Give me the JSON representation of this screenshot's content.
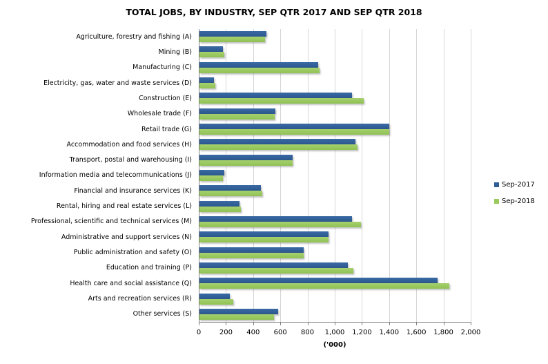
{
  "title": "TOTAL JOBS, BY INDUSTRY, SEP QTR 2017 AND SEP QTR 2018",
  "chart_data": {
    "type": "bar",
    "orientation": "horizontal",
    "title": "TOTAL JOBS, BY INDUSTRY, SEP QTR 2017 AND SEP QTR 2018",
    "xlabel": "('000)",
    "ylabel": "",
    "xlim": [
      0,
      2000
    ],
    "grid": true,
    "legend_position": "right",
    "x_tick_labels": [
      "0",
      "200",
      "400",
      "600",
      "800",
      "1,000",
      "1,200",
      "1,400",
      "1,600",
      "1,800",
      "2,000"
    ],
    "x_tick_values": [
      0,
      200,
      400,
      600,
      800,
      1000,
      1200,
      1400,
      1600,
      1800,
      2000
    ],
    "categories": [
      "Agriculture, forestry and fishing (A)",
      "Mining (B)",
      "Manufacturing (C)",
      "Electricity, gas, water and waste services (D)",
      "Construction (E)",
      "Wholesale trade (F)",
      "Retail trade (G)",
      "Accommodation and food services (H)",
      "Transport, postal and warehousing (I)",
      "Information media and telecommunications (J)",
      "Financial and insurance services (K)",
      "Rental, hiring and real estate services (L)",
      "Professional, scientific and technical services (M)",
      "Administrative and support services (N)",
      "Public administration and safety (O)",
      "Education and training (P)",
      "Health care and social assistance (Q)",
      "Arts and recreation services (R)",
      "Other services (S)"
    ],
    "series": [
      {
        "name": "Sep-2017",
        "color": "#2F5D94",
        "values": [
          490,
          175,
          875,
          105,
          1120,
          560,
          1395,
          1145,
          685,
          185,
          450,
          295,
          1120,
          950,
          765,
          1090,
          1750,
          225,
          580
        ]
      },
      {
        "name": "Sep-2018",
        "color": "#9AC95C",
        "values": [
          480,
          185,
          885,
          115,
          1210,
          555,
          1395,
          1160,
          685,
          175,
          460,
          305,
          1190,
          950,
          765,
          1130,
          1840,
          250,
          550
        ]
      }
    ]
  },
  "colors": {
    "gridline": "#D6D6D6",
    "axis": "#7F7F7F",
    "background": "#FFFFFF",
    "text": "#000000"
  }
}
